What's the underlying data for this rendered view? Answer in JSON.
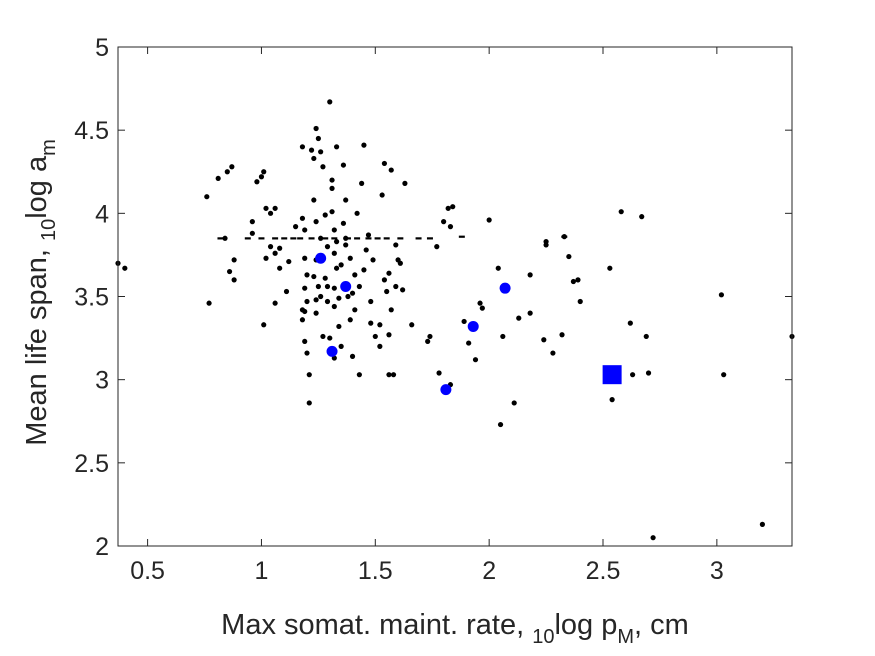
{
  "chart_data": {
    "type": "scatter",
    "title": "",
    "xlabel": {
      "pre": "Max somat. maint. rate, ",
      "sub": "10",
      "mid": "log p",
      "sub2": "M",
      "post": ", cm"
    },
    "ylabel": {
      "pre": "Mean life span, ",
      "sub": "10",
      "mid": "log a",
      "sub2": "m"
    },
    "xlim": [
      0.37,
      3.33
    ],
    "ylim": [
      2,
      5
    ],
    "xticks": [
      0.5,
      1,
      1.5,
      2,
      2.5,
      3
    ],
    "xtick_labels": [
      "0.5",
      "1",
      "1.5",
      "2",
      "2.5",
      "3"
    ],
    "yticks": [
      2,
      2.5,
      3,
      3.5,
      4,
      4.5,
      5
    ],
    "ytick_labels": [
      "2",
      "2.5",
      "3",
      "3.5",
      "4",
      "4.5",
      "5"
    ],
    "grid": false,
    "colors": {
      "points": "#000000",
      "highlight": "#0000ff",
      "axes": "#262626"
    },
    "series": [
      {
        "marker": "small-dot",
        "color": "#000000",
        "points": [
          [
            0.37,
            3.7
          ],
          [
            0.4,
            3.67
          ],
          [
            0.76,
            4.1
          ],
          [
            0.77,
            3.46
          ],
          [
            0.81,
            4.21
          ],
          [
            0.85,
            4.25
          ],
          [
            0.87,
            4.28
          ],
          [
            0.86,
            3.65
          ],
          [
            0.88,
            3.72
          ],
          [
            0.88,
            3.6
          ],
          [
            0.84,
            3.85
          ],
          [
            0.96,
            3.95
          ],
          [
            0.96,
            3.88
          ],
          [
            0.98,
            4.19
          ],
          [
            1.0,
            4.22
          ],
          [
            1.01,
            4.25
          ],
          [
            1.02,
            4.03
          ],
          [
            1.04,
            4.0
          ],
          [
            1.02,
            3.73
          ],
          [
            1.04,
            3.8
          ],
          [
            1.06,
            3.76
          ],
          [
            1.06,
            3.46
          ],
          [
            1.01,
            3.33
          ],
          [
            1.08,
            3.67
          ],
          [
            1.08,
            3.79
          ],
          [
            1.12,
            3.71
          ],
          [
            1.06,
            4.03
          ],
          [
            1.18,
            4.4
          ],
          [
            1.19,
            3.9
          ],
          [
            1.18,
            3.97
          ],
          [
            1.19,
            3.73
          ],
          [
            1.19,
            3.55
          ],
          [
            1.2,
            3.63
          ],
          [
            1.2,
            3.47
          ],
          [
            1.19,
            3.41
          ],
          [
            1.18,
            3.36
          ],
          [
            1.19,
            3.23
          ],
          [
            1.2,
            3.16
          ],
          [
            1.21,
            3.03
          ],
          [
            1.21,
            2.86
          ],
          [
            1.22,
            4.38
          ],
          [
            1.23,
            4.33
          ],
          [
            1.24,
            4.51
          ],
          [
            1.25,
            4.45
          ],
          [
            1.26,
            4.37
          ],
          [
            1.27,
            4.28
          ],
          [
            1.23,
            4.08
          ],
          [
            1.24,
            3.95
          ],
          [
            1.26,
            3.85
          ],
          [
            1.24,
            3.72
          ],
          [
            1.23,
            3.62
          ],
          [
            1.25,
            3.56
          ],
          [
            1.24,
            3.4
          ],
          [
            1.26,
            3.5
          ],
          [
            1.27,
            3.26
          ],
          [
            1.28,
            3.61
          ],
          [
            1.29,
            3.8
          ],
          [
            1.29,
            3.47
          ],
          [
            1.3,
            4.67
          ],
          [
            1.31,
            4.2
          ],
          [
            1.31,
            4.15
          ],
          [
            1.31,
            4.01
          ],
          [
            1.32,
            3.9
          ],
          [
            1.32,
            3.76
          ],
          [
            1.32,
            3.55
          ],
          [
            1.32,
            3.44
          ],
          [
            1.32,
            3.13
          ],
          [
            1.33,
            4.4
          ],
          [
            1.33,
            3.67
          ],
          [
            1.34,
            3.32
          ],
          [
            1.35,
            3.2
          ],
          [
            1.36,
            4.29
          ],
          [
            1.37,
            4.08
          ],
          [
            1.36,
            3.94
          ],
          [
            1.37,
            3.85
          ],
          [
            1.39,
            3.73
          ],
          [
            1.4,
            3.52
          ],
          [
            1.41,
            3.63
          ],
          [
            1.41,
            3.42
          ],
          [
            1.42,
            4.0
          ],
          [
            1.43,
            3.56
          ],
          [
            1.43,
            3.03
          ],
          [
            1.44,
            4.18
          ],
          [
            1.45,
            4.41
          ],
          [
            1.46,
            3.78
          ],
          [
            1.48,
            3.47
          ],
          [
            1.48,
            3.34
          ],
          [
            1.5,
            3.26
          ],
          [
            1.52,
            3.33
          ],
          [
            1.53,
            4.11
          ],
          [
            1.52,
            3.2
          ],
          [
            1.54,
            4.3
          ],
          [
            1.54,
            3.6
          ],
          [
            1.55,
            3.53
          ],
          [
            1.56,
            3.27
          ],
          [
            1.57,
            4.26
          ],
          [
            1.56,
            3.64
          ],
          [
            1.57,
            3.42
          ],
          [
            1.58,
            3.03
          ],
          [
            1.59,
            3.56
          ],
          [
            1.59,
            3.81
          ],
          [
            1.6,
            3.72
          ],
          [
            1.61,
            3.7
          ],
          [
            1.62,
            3.54
          ],
          [
            1.63,
            4.18
          ],
          [
            1.66,
            3.33
          ],
          [
            1.73,
            3.23
          ],
          [
            1.74,
            3.26
          ],
          [
            1.77,
            3.8
          ],
          [
            1.78,
            3.04
          ],
          [
            1.8,
            3.95
          ],
          [
            1.82,
            4.03
          ],
          [
            1.83,
            3.92
          ],
          [
            1.84,
            4.04
          ],
          [
            1.83,
            2.97
          ],
          [
            1.82,
            2.94
          ],
          [
            1.89,
            3.35
          ],
          [
            1.91,
            3.22
          ],
          [
            1.94,
            3.12
          ],
          [
            1.96,
            3.46
          ],
          [
            1.97,
            3.43
          ],
          [
            2.0,
            3.96
          ],
          [
            2.04,
            3.67
          ],
          [
            2.06,
            3.26
          ],
          [
            2.05,
            2.73
          ],
          [
            2.11,
            2.86
          ],
          [
            2.13,
            3.37
          ],
          [
            2.18,
            3.4
          ],
          [
            2.18,
            3.63
          ],
          [
            2.24,
            3.24
          ],
          [
            2.25,
            3.83
          ],
          [
            2.25,
            3.81
          ],
          [
            2.28,
            3.16
          ],
          [
            2.32,
            3.27
          ],
          [
            2.33,
            3.86
          ],
          [
            2.35,
            3.74
          ],
          [
            2.37,
            3.59
          ],
          [
            2.39,
            3.6
          ],
          [
            2.4,
            3.47
          ],
          [
            2.53,
            3.67
          ],
          [
            2.54,
            2.88
          ],
          [
            2.58,
            4.01
          ],
          [
            2.62,
            3.34
          ],
          [
            2.63,
            3.03
          ],
          [
            2.67,
            3.98
          ],
          [
            2.69,
            3.26
          ],
          [
            2.7,
            3.04
          ],
          [
            2.72,
            2.05
          ],
          [
            3.02,
            3.51
          ],
          [
            3.03,
            3.03
          ],
          [
            3.2,
            2.13
          ],
          [
            3.33,
            3.26
          ],
          [
            1.15,
            3.92
          ],
          [
            1.11,
            3.53
          ],
          [
            1.29,
            3.56
          ],
          [
            1.49,
            3.72
          ],
          [
            1.35,
            3.69
          ],
          [
            1.28,
            3.99
          ],
          [
            1.38,
            3.5
          ],
          [
            1.45,
            3.66
          ],
          [
            1.33,
            3.83
          ],
          [
            1.27,
            3.73
          ],
          [
            1.37,
            3.81
          ],
          [
            1.4,
            3.14
          ],
          [
            1.56,
            3.03
          ],
          [
            1.3,
            3.25
          ],
          [
            1.34,
            3.49
          ],
          [
            1.24,
            3.48
          ],
          [
            1.18,
            3.42
          ],
          [
            1.47,
            3.87
          ],
          [
            1.39,
            3.36
          ]
        ]
      },
      {
        "marker": "dash",
        "color": "#000000",
        "points": [
          [
            0.82,
            3.85
          ],
          [
            0.94,
            3.85
          ],
          [
            1.0,
            3.85
          ],
          [
            1.06,
            3.85
          ],
          [
            1.1,
            3.85
          ],
          [
            1.14,
            3.85
          ],
          [
            1.17,
            3.85
          ],
          [
            1.22,
            3.85
          ],
          [
            1.28,
            3.85
          ],
          [
            1.32,
            3.85
          ],
          [
            1.38,
            3.85
          ],
          [
            1.42,
            3.85
          ],
          [
            1.47,
            3.85
          ],
          [
            1.51,
            3.85
          ],
          [
            1.55,
            3.85
          ],
          [
            1.61,
            3.85
          ],
          [
            1.69,
            3.85
          ],
          [
            1.74,
            3.85
          ],
          [
            1.88,
            3.86
          ],
          [
            2.33,
            3.86
          ]
        ]
      },
      {
        "marker": "circle",
        "color": "#0000ff",
        "points": [
          [
            1.26,
            3.73
          ],
          [
            1.37,
            3.56
          ],
          [
            1.31,
            3.17
          ],
          [
            1.81,
            2.94
          ],
          [
            1.93,
            3.32
          ],
          [
            2.07,
            3.55
          ]
        ]
      },
      {
        "marker": "square",
        "color": "#0000ff",
        "points": [
          [
            2.54,
            3.03
          ]
        ]
      }
    ]
  }
}
